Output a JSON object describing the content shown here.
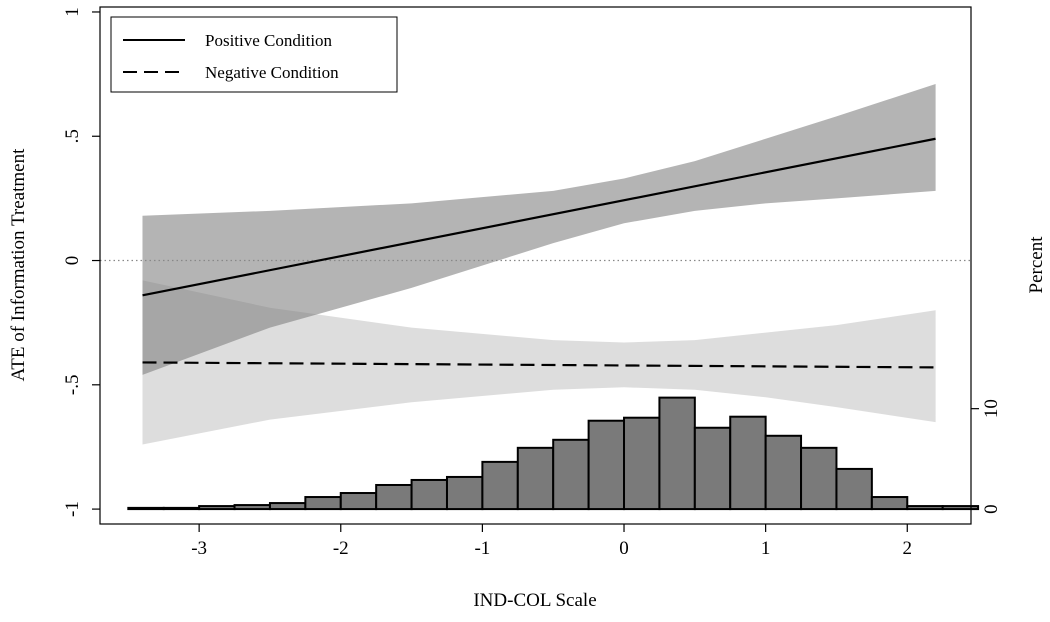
{
  "chart_data": {
    "type": "line",
    "xlabel": "IND-COL Scale",
    "ylabel": "ATE of Information Treatment",
    "y2label": "Percent",
    "xlim": [
      -3.7,
      2.45
    ],
    "ylim": [
      -1.06,
      1.02
    ],
    "y2lim": [
      0,
      50
    ],
    "xticks": [
      -3,
      -2,
      -1,
      0,
      1,
      2
    ],
    "xtick_labels": [
      "-3",
      "-2",
      "-1",
      "0",
      "1",
      "2"
    ],
    "yticks": [
      -1,
      -0.5,
      0,
      0.5,
      1
    ],
    "ytick_labels": [
      "-1",
      "-.5",
      "0",
      ".5",
      "1"
    ],
    "y2ticks": [
      0,
      10
    ],
    "y2tick_labels": [
      "0",
      "10"
    ],
    "reference_line_y": 0,
    "legend": {
      "placement": "top-left",
      "entries": [
        "Positive Condition",
        "Negative Condition"
      ]
    },
    "series": [
      {
        "name": "Positive Condition",
        "style": "solid",
        "x": [
          -3.4,
          2.2
        ],
        "y": [
          -0.14,
          0.49
        ],
        "band": {
          "x": [
            -3.4,
            -2.5,
            -1.5,
            -0.5,
            0,
            0.5,
            1.0,
            1.5,
            2.2
          ],
          "lower": [
            -0.46,
            -0.27,
            -0.11,
            0.07,
            0.15,
            0.2,
            0.23,
            0.25,
            0.28
          ],
          "upper": [
            0.18,
            0.2,
            0.23,
            0.28,
            0.33,
            0.4,
            0.49,
            0.58,
            0.71
          ]
        }
      },
      {
        "name": "Negative Condition",
        "style": "dashed",
        "x": [
          -3.4,
          2.2
        ],
        "y": [
          -0.41,
          -0.43
        ],
        "band": {
          "x": [
            -3.4,
            -2.5,
            -1.5,
            -0.5,
            0,
            0.5,
            1.0,
            1.5,
            2.2
          ],
          "lower": [
            -0.74,
            -0.64,
            -0.57,
            -0.52,
            -0.51,
            -0.52,
            -0.55,
            -0.59,
            -0.65
          ],
          "upper": [
            -0.08,
            -0.19,
            -0.27,
            -0.32,
            -0.33,
            -0.32,
            -0.29,
            -0.26,
            -0.2
          ]
        }
      }
    ],
    "histogram": {
      "bin_width": 0.25,
      "bin_starts": [
        -3.5,
        -3.25,
        -3.0,
        -2.75,
        -2.5,
        -2.25,
        -2.0,
        -1.75,
        -1.5,
        -1.25,
        -1.0,
        -0.75,
        -0.5,
        -0.25,
        0.0,
        0.25,
        0.5,
        0.75,
        1.0,
        1.25,
        1.5,
        1.75,
        2.0,
        2.25
      ],
      "percent": [
        0.1,
        0.05,
        0.3,
        0.4,
        0.6,
        1.2,
        1.6,
        2.4,
        2.9,
        3.2,
        4.7,
        6.1,
        6.9,
        8.8,
        9.1,
        11.1,
        8.1,
        9.2,
        7.3,
        6.1,
        4.0,
        1.2,
        0.3,
        0.3
      ]
    }
  }
}
